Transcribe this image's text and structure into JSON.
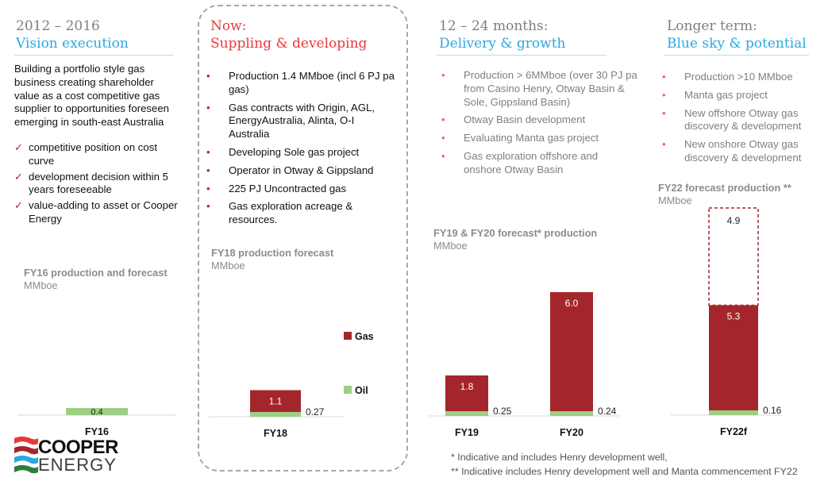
{
  "colors": {
    "gas": "#a4262c",
    "oil": "#9ccf85",
    "accent": "#29a9e0",
    "now": "#e8393a"
  },
  "columns": [
    {
      "period": "2012 – 2016",
      "label": "Vision execution",
      "intro": "Building a portfolio style gas business creating shareholder value as a cost competitive gas supplier to opportunities foreseen emerging in south-east Australia",
      "ticks": [
        "competitive position on cost curve",
        "development decision within 5 years foreseeable",
        "value-adding to asset or Cooper Energy"
      ]
    },
    {
      "period": "Now:",
      "label": "Suppling & developing",
      "bullets": [
        "Production 1.4 MMboe (incl 6 PJ pa gas)",
        "Gas contracts with Origin, AGL, EnergyAustralia, Alinta, O-I Australia",
        "Developing Sole gas project",
        "Operator in Otway & Gippsland",
        "225 PJ Uncontracted gas",
        "Gas exploration acreage & resources."
      ]
    },
    {
      "period": "12 – 24 months:",
      "label": "Delivery & growth",
      "bullets": [
        "Production  > 6MMboe (over 30 PJ pa from Casino Henry, Otway Basin & Sole, Gippsland Basin)",
        "Otway Basin development",
        "Evaluating Manta gas project",
        "Gas exploration offshore and onshore Otway Basin"
      ]
    },
    {
      "period": "Longer term:",
      "label": "Blue sky & potential",
      "bullets": [
        "Production >10 MMboe",
        "Manta gas project",
        "New offshore Otway gas discovery & development",
        "New onshore Otway gas discovery & development"
      ]
    }
  ],
  "chart_data": [
    {
      "type": "bar",
      "title": "FY16 production and forecast",
      "ylabel": "MMboe",
      "categories": [
        "FY16"
      ],
      "series": [
        {
          "name": "Oil",
          "values": [
            0.4
          ]
        }
      ],
      "labels": [
        "0.4"
      ]
    },
    {
      "type": "bar",
      "title": "FY18 production forecast",
      "ylabel": "MMboe",
      "categories": [
        "FY18"
      ],
      "series": [
        {
          "name": "Oil",
          "values": [
            0.27
          ]
        },
        {
          "name": "Gas",
          "values": [
            1.1
          ]
        }
      ],
      "legend": [
        "Gas",
        "Oil"
      ],
      "legend_position": "right",
      "labels_gas": [
        "1.1"
      ],
      "labels_oil": [
        "0.27"
      ]
    },
    {
      "type": "bar",
      "title": "FY19 & FY20 forecast* production",
      "ylabel": "MMboe",
      "categories": [
        "FY19",
        "FY20"
      ],
      "series": [
        {
          "name": "Oil",
          "values": [
            0.25,
            0.24
          ]
        },
        {
          "name": "Gas",
          "values": [
            1.8,
            6.0
          ]
        }
      ],
      "labels_gas": [
        "1.8",
        "6.0"
      ],
      "labels_oil": [
        "0.25",
        "0.24"
      ]
    },
    {
      "type": "bar",
      "title": "FY22 forecast production **",
      "ylabel": "MMboe",
      "categories": [
        "FY22f"
      ],
      "series": [
        {
          "name": "Oil",
          "values": [
            0.16
          ]
        },
        {
          "name": "Gas",
          "values": [
            5.3
          ]
        },
        {
          "name": "Potential",
          "values": [
            4.9
          ]
        }
      ],
      "labels_gas": [
        "5.3"
      ],
      "labels_potential": [
        "4.9"
      ],
      "labels_oil": [
        "0.16"
      ]
    }
  ],
  "footnotes": [
    "* Indicative and includes Henry development well,",
    "** Indicative includes Henry development well and  Manta commencement FY22"
  ],
  "logo": {
    "line1": "COOPER",
    "line2": "ENERGY"
  }
}
